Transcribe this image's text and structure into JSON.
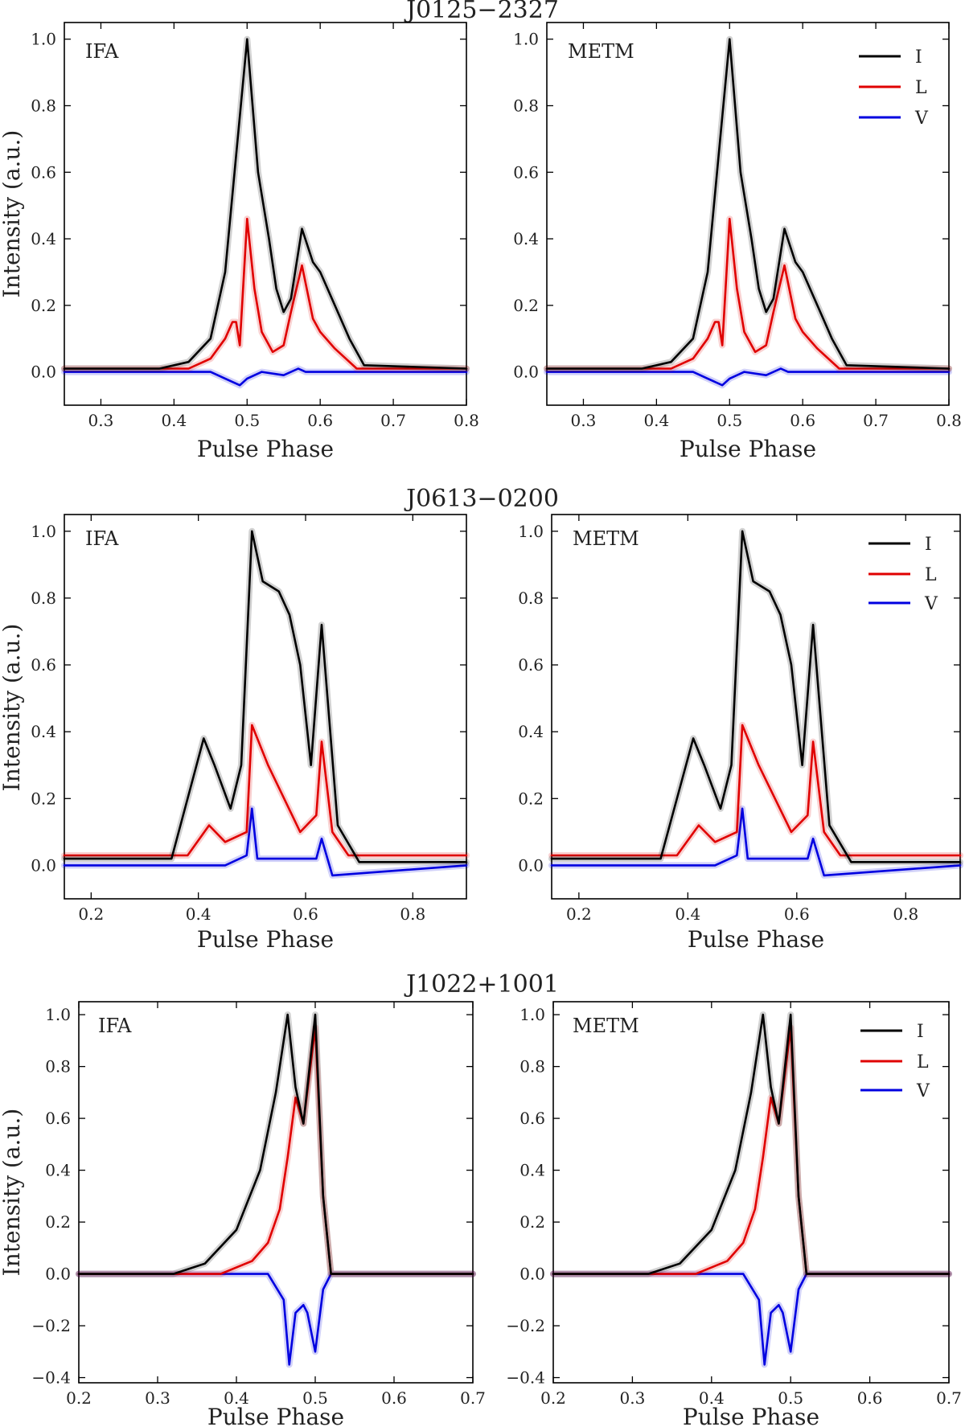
{
  "chart_data": [
    {
      "type": "line",
      "title": "J0125−2327",
      "panels": [
        {
          "method": "IFA",
          "legend": false
        },
        {
          "method": "METM",
          "legend": true
        }
      ],
      "xlabel": "Pulse Phase",
      "ylabel": "Intensity (a.u.)",
      "xlim": [
        0.25,
        0.8
      ],
      "ylim": [
        -0.1,
        1.05
      ],
      "xticks": [
        0.3,
        0.4,
        0.5,
        0.6,
        0.7,
        0.8
      ],
      "xticklabels": [
        "0.3",
        "0.4",
        "0.5",
        "0.6",
        "0.7",
        "0.8"
      ],
      "yticks": [
        0.0,
        0.2,
        0.4,
        0.6,
        0.8,
        1.0
      ],
      "yticklabels": [
        "0.0",
        "0.2",
        "0.4",
        "0.6",
        "0.8",
        "1.0"
      ],
      "series": [
        {
          "name": "I",
          "color": "#000000",
          "x": [
            0.25,
            0.38,
            0.42,
            0.45,
            0.47,
            0.485,
            0.5,
            0.515,
            0.53,
            0.54,
            0.55,
            0.56,
            0.575,
            0.59,
            0.6,
            0.62,
            0.64,
            0.66,
            0.8
          ],
          "y": [
            0.01,
            0.01,
            0.03,
            0.1,
            0.3,
            0.65,
            1.0,
            0.6,
            0.4,
            0.25,
            0.18,
            0.22,
            0.43,
            0.33,
            0.3,
            0.2,
            0.1,
            0.02,
            0.01
          ]
        },
        {
          "name": "L",
          "color": "#e00000",
          "x": [
            0.25,
            0.42,
            0.45,
            0.47,
            0.48,
            0.485,
            0.49,
            0.5,
            0.51,
            0.52,
            0.535,
            0.55,
            0.56,
            0.575,
            0.59,
            0.6,
            0.62,
            0.65,
            0.8
          ],
          "y": [
            0.01,
            0.01,
            0.04,
            0.1,
            0.15,
            0.15,
            0.08,
            0.46,
            0.25,
            0.12,
            0.06,
            0.08,
            0.18,
            0.32,
            0.16,
            0.12,
            0.07,
            0.01,
            0.01
          ]
        },
        {
          "name": "V",
          "color": "#0000e0",
          "x": [
            0.25,
            0.45,
            0.47,
            0.49,
            0.5,
            0.52,
            0.55,
            0.57,
            0.58,
            0.6,
            0.8
          ],
          "y": [
            0.0,
            0.0,
            -0.02,
            -0.04,
            -0.02,
            0.0,
            -0.01,
            0.01,
            0.0,
            0.0,
            0.0
          ]
        }
      ]
    },
    {
      "type": "line",
      "title": "J0613−0200",
      "panels": [
        {
          "method": "IFA",
          "legend": false
        },
        {
          "method": "METM",
          "legend": true
        }
      ],
      "xlabel": "Pulse Phase",
      "ylabel": "Intensity (a.u.)",
      "xlim": [
        0.15,
        0.9
      ],
      "ylim": [
        -0.1,
        1.05
      ],
      "xticks": [
        0.2,
        0.4,
        0.6,
        0.8
      ],
      "xticklabels": [
        "0.2",
        "0.4",
        "0.6",
        "0.8"
      ],
      "yticks": [
        0.0,
        0.2,
        0.4,
        0.6,
        0.8,
        1.0
      ],
      "yticklabels": [
        "0.0",
        "0.2",
        "0.4",
        "0.6",
        "0.8",
        "1.0"
      ],
      "series": [
        {
          "name": "I",
          "color": "#000000",
          "x": [
            0.15,
            0.35,
            0.38,
            0.41,
            0.43,
            0.46,
            0.48,
            0.5,
            0.52,
            0.55,
            0.57,
            0.59,
            0.61,
            0.63,
            0.66,
            0.7,
            0.9
          ],
          "y": [
            0.02,
            0.02,
            0.2,
            0.38,
            0.3,
            0.17,
            0.3,
            1.0,
            0.85,
            0.82,
            0.75,
            0.6,
            0.3,
            0.72,
            0.12,
            0.01,
            0.01
          ]
        },
        {
          "name": "L",
          "color": "#e00000",
          "x": [
            0.15,
            0.38,
            0.42,
            0.45,
            0.49,
            0.5,
            0.53,
            0.56,
            0.59,
            0.62,
            0.63,
            0.65,
            0.68,
            0.9
          ],
          "y": [
            0.03,
            0.03,
            0.12,
            0.07,
            0.1,
            0.42,
            0.3,
            0.2,
            0.1,
            0.15,
            0.37,
            0.1,
            0.03,
            0.03
          ]
        },
        {
          "name": "V",
          "color": "#0000e0",
          "x": [
            0.15,
            0.45,
            0.49,
            0.5,
            0.51,
            0.55,
            0.62,
            0.63,
            0.65,
            0.9
          ],
          "y": [
            0.0,
            0.0,
            0.03,
            0.17,
            0.02,
            0.02,
            0.02,
            0.08,
            -0.03,
            0.0
          ]
        }
      ]
    },
    {
      "type": "line",
      "title": "J1022+1001",
      "panels": [
        {
          "method": "IFA",
          "legend": false
        },
        {
          "method": "METM",
          "legend": true
        }
      ],
      "xlabel": "Pulse Phase",
      "ylabel": "Intensity (a.u.)",
      "xlim": [
        0.2,
        0.7
      ],
      "ylim": [
        -0.42,
        1.05
      ],
      "xticks": [
        0.2,
        0.3,
        0.4,
        0.5,
        0.6,
        0.7
      ],
      "xticklabels": [
        "0.2",
        "0.3",
        "0.4",
        "0.5",
        "0.6",
        "0.7"
      ],
      "yticks": [
        -0.4,
        -0.2,
        0.0,
        0.2,
        0.4,
        0.6,
        0.8,
        1.0
      ],
      "yticklabels": [
        "−0.4",
        "−0.2",
        "0.0",
        "0.2",
        "0.4",
        "0.6",
        "0.8",
        "1.0"
      ],
      "series": [
        {
          "name": "I",
          "color": "#000000",
          "x": [
            0.2,
            0.32,
            0.36,
            0.4,
            0.43,
            0.45,
            0.465,
            0.475,
            0.485,
            0.5,
            0.51,
            0.52,
            0.7
          ],
          "y": [
            0.0,
            0.0,
            0.04,
            0.17,
            0.4,
            0.7,
            1.0,
            0.72,
            0.58,
            1.0,
            0.3,
            0.0,
            0.0
          ]
        },
        {
          "name": "L",
          "color": "#e00000",
          "x": [
            0.2,
            0.38,
            0.42,
            0.44,
            0.455,
            0.465,
            0.475,
            0.485,
            0.5,
            0.51,
            0.52,
            0.7
          ],
          "y": [
            0.0,
            0.0,
            0.05,
            0.12,
            0.25,
            0.45,
            0.68,
            0.58,
            0.95,
            0.3,
            0.0,
            0.0
          ]
        },
        {
          "name": "V",
          "color": "#0000e0",
          "x": [
            0.2,
            0.44,
            0.46,
            0.467,
            0.475,
            0.485,
            0.49,
            0.5,
            0.51,
            0.52,
            0.7
          ],
          "y": [
            0.0,
            0.0,
            -0.1,
            -0.35,
            -0.15,
            -0.12,
            -0.15,
            -0.3,
            -0.06,
            0.0,
            0.0
          ]
        }
      ]
    }
  ]
}
